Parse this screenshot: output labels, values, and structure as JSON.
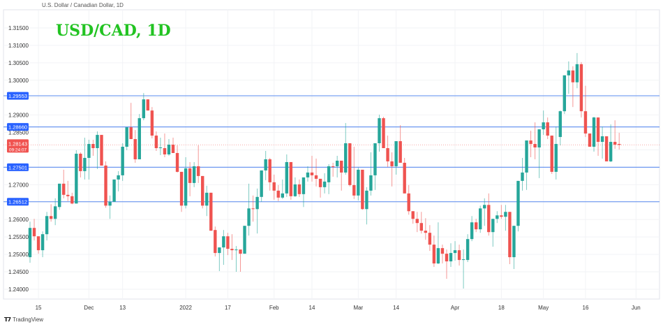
{
  "header": {
    "symbol_title": "U.S. Dollar / Canadian Dollar, 1D",
    "overlay_title": "USD/CAD, 1D"
  },
  "footer": {
    "brand_logo": "tv-logo-icon",
    "brand_label": "TradingView"
  },
  "colors": {
    "up": "#26a69a",
    "down": "#ef5350",
    "level_line": "#6b97f0",
    "level_badge": "#2962ff",
    "price_badge": "#f05350",
    "title_green": "#22c322"
  },
  "chart_data": {
    "type": "candlestick",
    "title": "USD/CAD, 1D",
    "ylim": [
      1.2375,
      1.3175
    ],
    "grid": true,
    "price_axis_position": "left",
    "y_ticks": [
      "1.31500",
      "1.31000",
      "1.30500",
      "1.30000",
      "1.29000",
      "1.28500",
      "1.27000",
      "1.26000",
      "1.25500",
      "1.25000",
      "1.24500",
      "1.24000"
    ],
    "x_ticks": [
      {
        "label": "15",
        "date": "2021-11-15"
      },
      {
        "label": "Dec",
        "date": "2021-12-01"
      },
      {
        "label": "13",
        "date": "2021-12-13"
      },
      {
        "label": "2022",
        "date": "2022-01-03"
      },
      {
        "label": "17",
        "date": "2022-01-17"
      },
      {
        "label": "Feb",
        "date": "2022-02-01"
      },
      {
        "label": "14",
        "date": "2022-02-14"
      },
      {
        "label": "Mar",
        "date": "2022-03-01"
      },
      {
        "label": "14",
        "date": "2022-03-14"
      },
      {
        "label": "Apr",
        "date": "2022-04-01"
      },
      {
        "label": "18",
        "date": "2022-04-18"
      },
      {
        "label": "May",
        "date": "2022-05-02"
      },
      {
        "label": "16",
        "date": "2022-05-16"
      },
      {
        "label": "Jun",
        "date": "2022-06-01"
      }
    ],
    "horizontal_levels": [
      "1.29553",
      "1.28660",
      "1.27501",
      "1.26512"
    ],
    "last_price": {
      "value": "1.28143",
      "countdown": "09:24:07"
    },
    "candle_fields": [
      "date",
      "open",
      "high",
      "low",
      "close"
    ],
    "candles": [
      [
        "2021-11-11",
        1.2492,
        1.2594,
        1.2476,
        1.2576
      ],
      [
        "2021-11-12",
        1.2576,
        1.2602,
        1.254,
        1.2552
      ],
      [
        "2021-11-15",
        1.2552,
        1.2552,
        1.2502,
        1.2512
      ],
      [
        "2021-11-16",
        1.2512,
        1.2566,
        1.2492,
        1.2558
      ],
      [
        "2021-11-17",
        1.2558,
        1.2622,
        1.254,
        1.261
      ],
      [
        "2021-11-18",
        1.261,
        1.2644,
        1.2594,
        1.2602
      ],
      [
        "2021-11-19",
        1.2602,
        1.2661,
        1.2584,
        1.2638
      ],
      [
        "2021-11-22",
        1.2636,
        1.2703,
        1.2628,
        1.2703
      ],
      [
        "2021-11-23",
        1.2703,
        1.2743,
        1.2661,
        1.2671
      ],
      [
        "2021-11-24",
        1.2671,
        1.2711,
        1.2653,
        1.2667
      ],
      [
        "2021-11-25",
        1.2667,
        1.2677,
        1.2644,
        1.2646
      ],
      [
        "2021-11-26",
        1.2646,
        1.2799,
        1.2646,
        1.2789
      ],
      [
        "2021-11-29",
        1.2789,
        1.2793,
        1.2721,
        1.2739
      ],
      [
        "2021-11-30",
        1.2739,
        1.2835,
        1.2715,
        1.2777
      ],
      [
        "2021-12-01",
        1.2777,
        1.2829,
        1.2715,
        1.2817
      ],
      [
        "2021-12-02",
        1.2817,
        1.2829,
        1.2783,
        1.2805
      ],
      [
        "2021-12-03",
        1.2805,
        1.2853,
        1.2745,
        1.2843
      ],
      [
        "2021-12-06",
        1.2843,
        1.2843,
        1.2755,
        1.2755
      ],
      [
        "2021-12-07",
        1.2755,
        1.2767,
        1.2634,
        1.264
      ],
      [
        "2021-12-08",
        1.264,
        1.2669,
        1.2602,
        1.2651
      ],
      [
        "2021-12-09",
        1.2651,
        1.2715,
        1.2651,
        1.2715
      ],
      [
        "2021-12-10",
        1.2715,
        1.2739,
        1.2681,
        1.2727
      ],
      [
        "2021-12-13",
        1.2727,
        1.2819,
        1.2711,
        1.2809
      ],
      [
        "2021-12-14",
        1.2809,
        1.2865,
        1.2799,
        1.2865
      ],
      [
        "2021-12-15",
        1.2865,
        1.2935,
        1.2831,
        1.2831
      ],
      [
        "2021-12-16",
        1.2831,
        1.2857,
        1.2763,
        1.2773
      ],
      [
        "2021-12-17",
        1.2773,
        1.2903,
        1.2773,
        1.2891
      ],
      [
        "2021-12-20",
        1.2891,
        1.2963,
        1.2885,
        1.2945
      ],
      [
        "2021-12-21",
        1.2945,
        1.2945,
        1.2913,
        1.2913
      ],
      [
        "2021-12-22",
        1.2913,
        1.2923,
        1.2833,
        1.2841
      ],
      [
        "2021-12-23",
        1.2841,
        1.2853,
        1.2797,
        1.2805
      ],
      [
        "2021-12-24",
        1.2805,
        1.2835,
        1.2785,
        1.2807
      ],
      [
        "2021-12-27",
        1.2805,
        1.2847,
        1.2779,
        1.2787
      ],
      [
        "2021-12-28",
        1.2787,
        1.2831,
        1.2783,
        1.2815
      ],
      [
        "2021-12-29",
        1.2815,
        1.2835,
        1.2791,
        1.2791
      ],
      [
        "2021-12-30",
        1.2791,
        1.2813,
        1.2735,
        1.2737
      ],
      [
        "2021-12-31",
        1.2737,
        1.2737,
        1.2622,
        1.264
      ],
      [
        "2022-01-03",
        1.264,
        1.2779,
        1.2632,
        1.2747
      ],
      [
        "2022-01-04",
        1.2747,
        1.2765,
        1.2667,
        1.2705
      ],
      [
        "2022-01-05",
        1.2705,
        1.2765,
        1.2693,
        1.2753
      ],
      [
        "2022-01-06",
        1.2753,
        1.2813,
        1.2705,
        1.2725
      ],
      [
        "2022-01-07",
        1.2725,
        1.2725,
        1.2632,
        1.264
      ],
      [
        "2022-01-10",
        1.264,
        1.2697,
        1.261,
        1.2677
      ],
      [
        "2022-01-11",
        1.2677,
        1.2677,
        1.2568,
        1.2568
      ],
      [
        "2022-01-12",
        1.257,
        1.258,
        1.2494,
        1.2504
      ],
      [
        "2022-01-13",
        1.2504,
        1.252,
        1.2452,
        1.252
      ],
      [
        "2022-01-14",
        1.252,
        1.257,
        1.247,
        1.2552
      ],
      [
        "2022-01-17",
        1.2552,
        1.2562,
        1.2498,
        1.2516
      ],
      [
        "2022-01-18",
        1.2516,
        1.2558,
        1.2484,
        1.2512
      ],
      [
        "2022-01-19",
        1.2512,
        1.2524,
        1.245,
        1.2514
      ],
      [
        "2022-01-20",
        1.2514,
        1.2514,
        1.245,
        1.2502
      ],
      [
        "2022-01-21",
        1.2502,
        1.2582,
        1.2502,
        1.2582
      ],
      [
        "2022-01-24",
        1.2582,
        1.2703,
        1.2554,
        1.2632
      ],
      [
        "2022-01-25",
        1.2632,
        1.2669,
        1.2594,
        1.263
      ],
      [
        "2022-01-26",
        1.263,
        1.2689,
        1.256,
        1.2665
      ],
      [
        "2022-01-27",
        1.2665,
        1.2741,
        1.2651,
        1.2741
      ],
      [
        "2022-01-28",
        1.2741,
        1.2797,
        1.2713,
        1.2773
      ],
      [
        "2022-01-31",
        1.2773,
        1.2777,
        1.2683,
        1.2707
      ],
      [
        "2022-02-01",
        1.2707,
        1.2729,
        1.2657,
        1.2683
      ],
      [
        "2022-02-02",
        1.2683,
        1.2699,
        1.2653,
        1.2663
      ],
      [
        "2022-02-03",
        1.2663,
        1.2715,
        1.2659,
        1.2675
      ],
      [
        "2022-02-04",
        1.2675,
        1.2787,
        1.2665,
        1.2765
      ],
      [
        "2022-02-07",
        1.2765,
        1.2765,
        1.2657,
        1.2667
      ],
      [
        "2022-02-08",
        1.2667,
        1.2721,
        1.2665,
        1.2701
      ],
      [
        "2022-02-09",
        1.2701,
        1.2715,
        1.2665,
        1.2673
      ],
      [
        "2022-02-10",
        1.2673,
        1.2721,
        1.2636,
        1.2721
      ],
      [
        "2022-02-11",
        1.2721,
        1.2753,
        1.2709,
        1.2735
      ],
      [
        "2022-02-14",
        1.2735,
        1.2783,
        1.2709,
        1.2727
      ],
      [
        "2022-02-15",
        1.2727,
        1.2775,
        1.2695,
        1.2717
      ],
      [
        "2022-02-16",
        1.2717,
        1.2717,
        1.2663,
        1.2693
      ],
      [
        "2022-02-17",
        1.2693,
        1.2733,
        1.2675,
        1.2709
      ],
      [
        "2022-02-18",
        1.2707,
        1.2759,
        1.2673,
        1.2753
      ],
      [
        "2022-02-21",
        1.2753,
        1.2763,
        1.2723,
        1.2751
      ],
      [
        "2022-02-22",
        1.2753,
        1.2783,
        1.2721,
        1.2769
      ],
      [
        "2022-02-23",
        1.2769,
        1.2769,
        1.2683,
        1.2735
      ],
      [
        "2022-02-24",
        1.2735,
        1.2877,
        1.2729,
        1.2819
      ],
      [
        "2022-02-25",
        1.2819,
        1.2819,
        1.2695,
        1.2699
      ],
      [
        "2022-02-28",
        1.2699,
        1.2809,
        1.2659,
        1.2669
      ],
      [
        "2022-03-01",
        1.2669,
        1.2749,
        1.2655,
        1.2743
      ],
      [
        "2022-03-02",
        1.2743,
        1.2743,
        1.2628,
        1.263
      ],
      [
        "2022-03-03",
        1.263,
        1.2693,
        1.2586,
        1.2683
      ],
      [
        "2022-03-04",
        1.2683,
        1.2793,
        1.2669,
        1.2727
      ],
      [
        "2022-03-07",
        1.2727,
        1.2819,
        1.2685,
        1.2819
      ],
      [
        "2022-03-08",
        1.2819,
        1.2901,
        1.2795,
        1.2891
      ],
      [
        "2022-03-09",
        1.2891,
        1.2895,
        1.2805,
        1.2805
      ],
      [
        "2022-03-10",
        1.2805,
        1.2841,
        1.2751,
        1.2767
      ],
      [
        "2022-03-11",
        1.2767,
        1.2793,
        1.2695,
        1.2753
      ],
      [
        "2022-03-14",
        1.2753,
        1.2825,
        1.2729,
        1.2825
      ],
      [
        "2022-03-15",
        1.2825,
        1.2871,
        1.2763,
        1.2763
      ],
      [
        "2022-03-16",
        1.2763,
        1.2777,
        1.2675,
        1.2675
      ],
      [
        "2022-03-17",
        1.2675,
        1.2699,
        1.2614,
        1.2624
      ],
      [
        "2022-03-18",
        1.2624,
        1.2624,
        1.2588,
        1.2602
      ],
      [
        "2022-03-21",
        1.2602,
        1.2622,
        1.2564,
        1.259
      ],
      [
        "2022-03-22",
        1.259,
        1.2622,
        1.256,
        1.2568
      ],
      [
        "2022-03-23",
        1.2568,
        1.2604,
        1.2542,
        1.2562
      ],
      [
        "2022-03-24",
        1.2562,
        1.2584,
        1.251,
        1.2528
      ],
      [
        "2022-03-25",
        1.2528,
        1.2554,
        1.2464,
        1.2474
      ],
      [
        "2022-03-28",
        1.2474,
        1.2592,
        1.2472,
        1.2518
      ],
      [
        "2022-03-29",
        1.2518,
        1.2528,
        1.2474,
        1.2502
      ],
      [
        "2022-03-30",
        1.2502,
        1.2514,
        1.243,
        1.248
      ],
      [
        "2022-03-31",
        1.248,
        1.2532,
        1.2464,
        1.2504
      ],
      [
        "2022-04-01",
        1.2504,
        1.2538,
        1.2482,
        1.2512
      ],
      [
        "2022-04-04",
        1.2512,
        1.2528,
        1.2468,
        1.2484
      ],
      [
        "2022-04-05",
        1.2484,
        1.2514,
        1.2402,
        1.2486
      ],
      [
        "2022-04-06",
        1.2484,
        1.2558,
        1.2478,
        1.2544
      ],
      [
        "2022-04-07",
        1.2544,
        1.261,
        1.2538,
        1.2592
      ],
      [
        "2022-04-08",
        1.2592,
        1.2602,
        1.2564,
        1.2572
      ],
      [
        "2022-04-11",
        1.2572,
        1.264,
        1.2562,
        1.2632
      ],
      [
        "2022-04-12",
        1.2632,
        1.2661,
        1.2582,
        1.2642
      ],
      [
        "2022-04-13",
        1.2642,
        1.2675,
        1.2554,
        1.2564
      ],
      [
        "2022-04-14",
        1.2564,
        1.2602,
        1.2522,
        1.2602
      ],
      [
        "2022-04-15",
        1.2602,
        1.2624,
        1.259,
        1.2612
      ],
      [
        "2022-04-18",
        1.2612,
        1.2642,
        1.2602,
        1.2608
      ],
      [
        "2022-04-19",
        1.2608,
        1.2642,
        1.2568,
        1.2622
      ],
      [
        "2022-04-20",
        1.2622,
        1.2622,
        1.2472,
        1.2492
      ],
      [
        "2022-04-21",
        1.2492,
        1.2582,
        1.2458,
        1.2582
      ],
      [
        "2022-04-22",
        1.2582,
        1.2711,
        1.2566,
        1.2711
      ],
      [
        "2022-04-25",
        1.2711,
        1.2777,
        1.2683,
        1.2735
      ],
      [
        "2022-04-26",
        1.2735,
        1.2827,
        1.2685,
        1.2827
      ],
      [
        "2022-04-27",
        1.2827,
        1.2855,
        1.2779,
        1.2817
      ],
      [
        "2022-04-28",
        1.2817,
        1.2879,
        1.2773,
        1.2807
      ],
      [
        "2022-04-29",
        1.2807,
        1.2859,
        1.2719,
        1.2859
      ],
      [
        "2022-05-02",
        1.2859,
        1.2913,
        1.2843,
        1.2879
      ],
      [
        "2022-05-03",
        1.2879,
        1.2893,
        1.2831,
        1.2841
      ],
      [
        "2022-05-04",
        1.2841,
        1.2841,
        1.2731,
        1.2737
      ],
      [
        "2022-05-05",
        1.2737,
        1.2867,
        1.2715,
        1.2817
      ],
      [
        "2022-05-06",
        1.2837,
        1.2913,
        1.2813,
        1.2911
      ],
      [
        "2022-05-09",
        1.2911,
        1.3014,
        1.2903,
        1.3014
      ],
      [
        "2022-05-10",
        1.3014,
        1.3054,
        1.2961,
        1.3028
      ],
      [
        "2022-05-11",
        1.3028,
        1.304,
        1.2923,
        1.2994
      ],
      [
        "2022-05-12",
        1.2994,
        1.3078,
        1.2977,
        1.3046
      ],
      [
        "2022-05-13",
        1.3046,
        1.3052,
        1.2893,
        1.2911
      ],
      [
        "2022-05-16",
        1.2911,
        1.2984,
        1.2837,
        1.2847
      ],
      [
        "2022-05-17",
        1.2847,
        1.2847,
        1.2809,
        1.2809
      ],
      [
        "2022-05-18",
        1.2809,
        1.2895,
        1.2795,
        1.2893
      ],
      [
        "2022-05-19",
        1.2893,
        1.2893,
        1.2783,
        1.2823
      ],
      [
        "2022-05-20",
        1.2823,
        1.2867,
        1.2775,
        1.2839
      ],
      [
        "2022-05-23",
        1.2839,
        1.2839,
        1.2767,
        1.2767
      ],
      [
        "2022-05-24",
        1.2767,
        1.2873,
        1.2765,
        1.2823
      ],
      [
        "2022-05-25",
        1.2823,
        1.2885,
        1.2803,
        1.2815
      ],
      [
        "2022-05-26",
        1.2817,
        1.2849,
        1.2801,
        1.28143
      ]
    ]
  }
}
